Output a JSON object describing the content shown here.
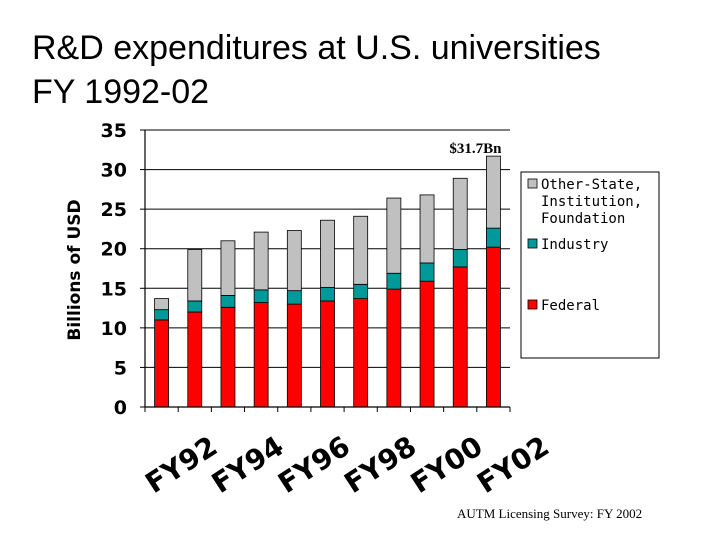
{
  "title": {
    "line1": "R&D expenditures at U.S. universities",
    "line2": "FY 1992-02"
  },
  "footer": "AUTM Licensing Survey: FY 2002",
  "chart_data": {
    "type": "bar",
    "stacked": true,
    "ylabel": "Billions of USD",
    "ylim": [
      0,
      35
    ],
    "yticks": [
      0,
      5,
      10,
      15,
      20,
      25,
      30,
      35
    ],
    "grid": "horizontal",
    "legend_position": "right",
    "x": [
      "1992",
      "1993",
      "1994",
      "1995",
      "1996",
      "1997",
      "1998",
      "1999",
      "2000",
      "2001",
      "2002"
    ],
    "x_tick_labels": [
      "FY92",
      "FY94",
      "FY96",
      "FY98",
      "FY00",
      "FY02"
    ],
    "series": [
      {
        "name": "Federal",
        "color": "#ff0000",
        "values": [
          11.0,
          12.0,
          12.6,
          13.2,
          13.0,
          13.4,
          13.7,
          14.9,
          15.9,
          17.7,
          20.2
        ]
      },
      {
        "name": "Industry",
        "color": "#009999",
        "values": [
          1.3,
          1.4,
          1.5,
          1.6,
          1.7,
          1.7,
          1.8,
          2.0,
          2.3,
          2.2,
          2.4
        ]
      },
      {
        "name": "Other-State, Institution, Foundation",
        "color": "#c0c0c0",
        "values": [
          1.4,
          6.5,
          6.9,
          7.3,
          7.6,
          8.5,
          8.6,
          9.5,
          8.6,
          9.0,
          9.1
        ]
      }
    ],
    "annotation": "$31.7Bn"
  }
}
